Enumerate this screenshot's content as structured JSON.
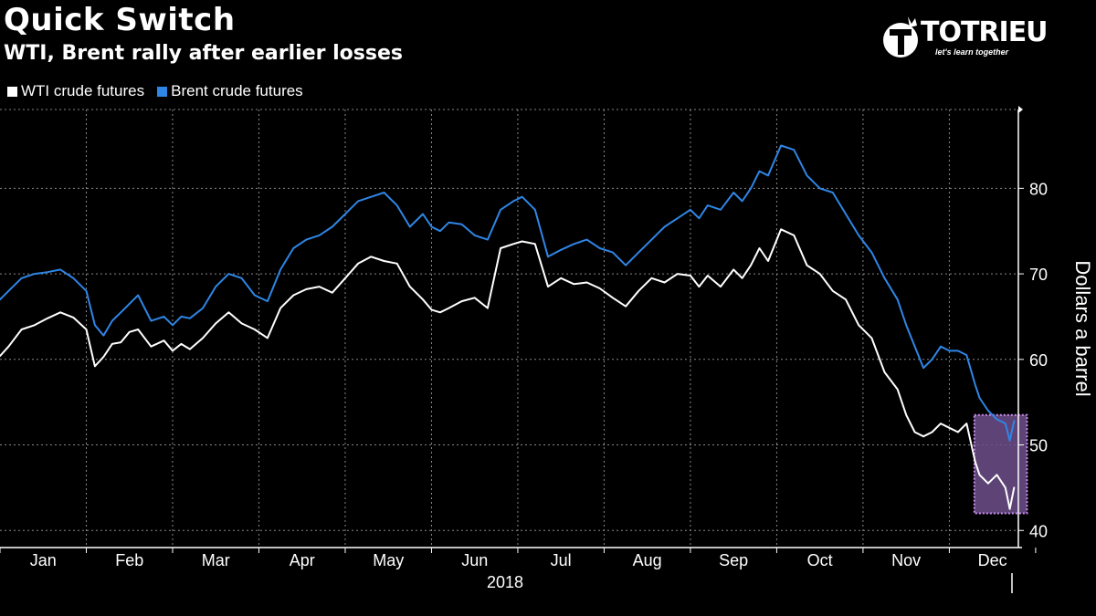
{
  "header": {
    "title": "Quick Switch",
    "subtitle": "WTI, Brent rally after earlier losses"
  },
  "logo": {
    "name": "TOTRIEU",
    "tagline": "let's learn together"
  },
  "colors": {
    "background": "#000000",
    "wti": "#ffffff",
    "brent": "#2f86e6",
    "highlight": "#6e4f8c",
    "highlight_border": "#c98ff0"
  },
  "chart_data": {
    "type": "line",
    "title": "Quick Switch",
    "subtitle": "WTI, Brent rally after earlier losses",
    "xlabel": "2018",
    "ylabel": "Dollars a barrel",
    "ylim": [
      38,
      89
    ],
    "xlim": [
      0,
      11.8
    ],
    "yticks": [
      40,
      50,
      60,
      70,
      80
    ],
    "xtick_labels": [
      "Jan",
      "Feb",
      "Mar",
      "Apr",
      "May",
      "Jun",
      "Jul",
      "Aug",
      "Sep",
      "Oct",
      "Nov",
      "Dec"
    ],
    "grid": true,
    "legend_position": "top-left",
    "highlight_box": {
      "x_range": [
        11.29,
        11.9
      ],
      "y_range": [
        42.0,
        53.5
      ]
    },
    "series": [
      {
        "name": "WTI crude futures",
        "x": [
          0,
          0.1,
          0.25,
          0.4,
          0.55,
          0.7,
          0.85,
          1.0,
          1.1,
          1.2,
          1.3,
          1.4,
          1.5,
          1.6,
          1.75,
          1.9,
          2.0,
          2.1,
          2.2,
          2.35,
          2.5,
          2.65,
          2.8,
          2.95,
          3.1,
          3.25,
          3.4,
          3.55,
          3.7,
          3.85,
          4.0,
          4.15,
          4.3,
          4.45,
          4.6,
          4.75,
          4.9,
          5.0,
          5.1,
          5.2,
          5.35,
          5.5,
          5.65,
          5.8,
          5.95,
          6.05,
          6.2,
          6.35,
          6.5,
          6.65,
          6.8,
          6.95,
          7.1,
          7.25,
          7.4,
          7.55,
          7.7,
          7.85,
          8.0,
          8.1,
          8.2,
          8.35,
          8.5,
          8.6,
          8.7,
          8.8,
          8.9,
          9.05,
          9.2,
          9.35,
          9.5,
          9.65,
          9.8,
          9.95,
          10.1,
          10.25,
          10.4,
          10.5,
          10.6,
          10.7,
          10.8,
          10.9,
          11.0,
          11.1,
          11.2,
          11.3,
          11.35,
          11.45,
          11.55,
          11.65,
          11.7,
          11.75
        ],
        "values": [
          60.4,
          61.5,
          63.5,
          64.0,
          64.8,
          65.5,
          64.9,
          63.5,
          59.2,
          60.3,
          61.8,
          62.0,
          63.2,
          63.5,
          61.5,
          62.2,
          61.0,
          61.8,
          61.2,
          62.5,
          64.2,
          65.5,
          64.2,
          63.5,
          62.5,
          66.0,
          67.5,
          68.2,
          68.5,
          67.8,
          69.5,
          71.2,
          72.0,
          71.5,
          71.2,
          68.5,
          67.0,
          65.8,
          65.5,
          66.0,
          66.8,
          67.2,
          66.0,
          73.0,
          73.5,
          73.8,
          73.5,
          68.5,
          69.5,
          68.8,
          69.0,
          68.3,
          67.2,
          66.2,
          68.0,
          69.5,
          69.0,
          70.0,
          69.8,
          68.5,
          69.8,
          68.5,
          70.5,
          69.5,
          71.0,
          73.0,
          71.5,
          75.2,
          74.5,
          71.0,
          70.0,
          68.0,
          67.0,
          64.0,
          62.5,
          58.5,
          56.5,
          53.5,
          51.5,
          51.0,
          51.5,
          52.5,
          52.0,
          51.5,
          52.5,
          48.0,
          46.5,
          45.5,
          46.5,
          45.0,
          42.5,
          45.0
        ]
      },
      {
        "name": "Brent crude futures",
        "x": [
          0,
          0.1,
          0.25,
          0.4,
          0.55,
          0.7,
          0.85,
          1.0,
          1.1,
          1.2,
          1.3,
          1.4,
          1.5,
          1.6,
          1.75,
          1.9,
          2.0,
          2.1,
          2.2,
          2.35,
          2.5,
          2.65,
          2.8,
          2.95,
          3.1,
          3.25,
          3.4,
          3.55,
          3.7,
          3.85,
          4.0,
          4.15,
          4.3,
          4.45,
          4.6,
          4.75,
          4.9,
          5.0,
          5.1,
          5.2,
          5.35,
          5.5,
          5.65,
          5.8,
          5.95,
          6.05,
          6.2,
          6.35,
          6.5,
          6.65,
          6.8,
          6.95,
          7.1,
          7.25,
          7.4,
          7.55,
          7.7,
          7.85,
          8.0,
          8.1,
          8.2,
          8.35,
          8.5,
          8.6,
          8.7,
          8.8,
          8.9,
          9.05,
          9.2,
          9.35,
          9.5,
          9.65,
          9.8,
          9.95,
          10.1,
          10.25,
          10.4,
          10.5,
          10.6,
          10.7,
          10.8,
          10.9,
          11.0,
          11.1,
          11.2,
          11.3,
          11.35,
          11.45,
          11.55,
          11.65,
          11.7,
          11.75
        ],
        "values": [
          67.0,
          68.0,
          69.5,
          70.0,
          70.2,
          70.5,
          69.5,
          68.0,
          64.0,
          62.8,
          64.5,
          65.5,
          66.5,
          67.5,
          64.5,
          65.0,
          64.0,
          65.0,
          64.8,
          66.0,
          68.5,
          70.0,
          69.5,
          67.5,
          66.8,
          70.5,
          73.0,
          74.0,
          74.5,
          75.5,
          77.0,
          78.5,
          79.0,
          79.5,
          78.0,
          75.5,
          77.0,
          75.5,
          75.0,
          76.0,
          75.8,
          74.5,
          74.0,
          77.5,
          78.5,
          79.0,
          77.5,
          72.0,
          72.8,
          73.5,
          74.0,
          73.0,
          72.5,
          71.0,
          72.5,
          74.0,
          75.5,
          76.5,
          77.5,
          76.5,
          78.0,
          77.5,
          79.5,
          78.5,
          80.0,
          82.0,
          81.5,
          85.0,
          84.5,
          81.5,
          80.0,
          79.5,
          77.0,
          74.5,
          72.5,
          69.5,
          67.0,
          64.0,
          61.5,
          59.0,
          60.0,
          61.5,
          61.0,
          61.0,
          60.5,
          57.0,
          55.5,
          54.0,
          53.0,
          52.5,
          50.5,
          52.8
        ]
      }
    ]
  }
}
